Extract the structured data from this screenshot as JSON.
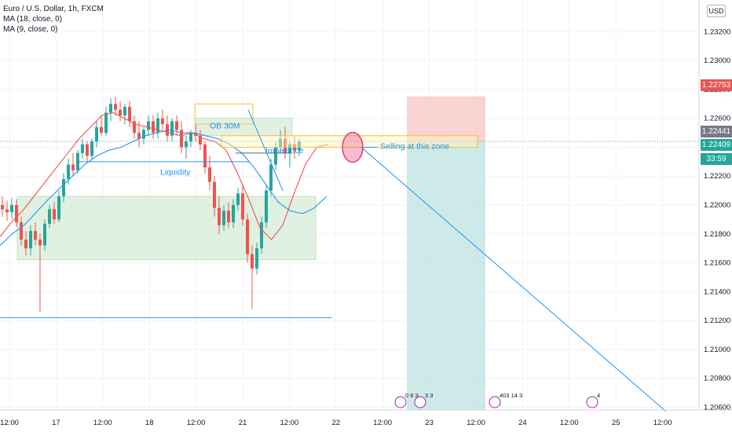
{
  "legend": {
    "symbol": "Euro / U.S. Dollar, 1h, FXCM",
    "ma18": "MA (18, close, 0)",
    "ma9": "MA (9, close, 0)"
  },
  "currency_button": "USD",
  "badges": {
    "stop_price": "1.22753",
    "last_price": "1.22441",
    "ask_price": "1.22409",
    "countdown": "33:59"
  },
  "colors": {
    "up": "#26a69a",
    "down": "#ef5350",
    "ma18": "#2196f3",
    "ma9": "#ef5350",
    "zone": "#c8e6c9",
    "ob": "#fbc02d",
    "stop": "#f8c4c4",
    "target": "#b2dfdb",
    "drawing_blue": "#2196f3"
  },
  "annotations": {
    "ob": "OB 30M",
    "imbalance": "Imbalance",
    "liquidity": "Liquidity",
    "selling": "Selling at this zone"
  },
  "event_flags": [
    "0 6 3",
    "3 3",
    "403 14 3",
    "4"
  ],
  "chart_data": {
    "type": "candlestick",
    "title": "Euro / U.S. Dollar, 1h, FXCM",
    "ylim": [
      1.2058,
      1.2342
    ],
    "y_ticks": [
      1.206,
      1.208,
      1.21,
      1.212,
      1.214,
      1.216,
      1.218,
      1.22,
      1.222,
      1.224,
      1.226,
      1.228,
      1.23,
      1.232
    ],
    "y_tick_labels": [
      "1.20600",
      "1.20800",
      "1.21000",
      "1.21200",
      "1.21400",
      "1.21600",
      "1.21800",
      "1.22000",
      "1.22200",
      "1.22400",
      "1.22600",
      "1.22800",
      "1.23000",
      "1.23200"
    ],
    "x_tick_labels": [
      "12:00",
      "17",
      "12:00",
      "18",
      "12:00",
      "21",
      "12:00",
      "22",
      "12:00",
      "23",
      "12:00",
      "24",
      "12:00",
      "25",
      "12:00"
    ],
    "ohlc": [
      [
        1.22,
        1.2206,
        1.2192,
        1.2197
      ],
      [
        1.2197,
        1.2203,
        1.2189,
        1.2195
      ],
      [
        1.2195,
        1.2205,
        1.219,
        1.22
      ],
      [
        1.22,
        1.2204,
        1.2185,
        1.2188
      ],
      [
        1.2188,
        1.2192,
        1.2172,
        1.2176
      ],
      [
        1.2176,
        1.2182,
        1.2165,
        1.217
      ],
      [
        1.217,
        1.2186,
        1.2165,
        1.2182
      ],
      [
        1.2182,
        1.2188,
        1.2172,
        1.2176
      ],
      [
        1.2176,
        1.218,
        1.2126,
        1.2172
      ],
      [
        1.2172,
        1.219,
        1.2168,
        1.2187
      ],
      [
        1.2187,
        1.22,
        1.2184,
        1.2197
      ],
      [
        1.2197,
        1.2202,
        1.2187,
        1.219
      ],
      [
        1.219,
        1.221,
        1.2188,
        1.2206
      ],
      [
        1.2206,
        1.2222,
        1.2202,
        1.2218
      ],
      [
        1.2218,
        1.2232,
        1.2214,
        1.2228
      ],
      [
        1.2228,
        1.2236,
        1.222,
        1.2224
      ],
      [
        1.2224,
        1.2238,
        1.2222,
        1.2236
      ],
      [
        1.2236,
        1.2246,
        1.2232,
        1.2242
      ],
      [
        1.2242,
        1.2244,
        1.223,
        1.2234
      ],
      [
        1.2234,
        1.2246,
        1.2232,
        1.2244
      ],
      [
        1.2244,
        1.2258,
        1.224,
        1.2254
      ],
      [
        1.2254,
        1.2262,
        1.2248,
        1.225
      ],
      [
        1.225,
        1.2268,
        1.2248,
        1.2264
      ],
      [
        1.2264,
        1.2274,
        1.2258,
        1.227
      ],
      [
        1.227,
        1.2275,
        1.2262,
        1.2266
      ],
      [
        1.2266,
        1.2272,
        1.2258,
        1.2262
      ],
      [
        1.2262,
        1.227,
        1.2256,
        1.2268
      ],
      [
        1.2268,
        1.2272,
        1.2254,
        1.2258
      ],
      [
        1.2258,
        1.2262,
        1.2246,
        1.225
      ],
      [
        1.225,
        1.2258,
        1.224,
        1.2246
      ],
      [
        1.2246,
        1.2254,
        1.2242,
        1.2252
      ],
      [
        1.2252,
        1.2262,
        1.2248,
        1.2258
      ],
      [
        1.2258,
        1.2262,
        1.2246,
        1.225
      ],
      [
        1.225,
        1.2264,
        1.2246,
        1.226
      ],
      [
        1.226,
        1.2266,
        1.2252,
        1.2256
      ],
      [
        1.2256,
        1.2262,
        1.2244,
        1.2248
      ],
      [
        1.2248,
        1.226,
        1.2244,
        1.2258
      ],
      [
        1.2258,
        1.2262,
        1.2248,
        1.2252
      ],
      [
        1.2252,
        1.2258,
        1.2236,
        1.224
      ],
      [
        1.224,
        1.2248,
        1.2232,
        1.2244
      ],
      [
        1.2244,
        1.2252,
        1.224,
        1.225
      ],
      [
        1.225,
        1.2256,
        1.2244,
        1.2248
      ],
      [
        1.2248,
        1.2252,
        1.2238,
        1.2242
      ],
      [
        1.2242,
        1.2244,
        1.2222,
        1.2226
      ],
      [
        1.2226,
        1.2234,
        1.221,
        1.2216
      ],
      [
        1.2216,
        1.222,
        1.2192,
        1.2198
      ],
      [
        1.2198,
        1.2206,
        1.218,
        1.2186
      ],
      [
        1.2186,
        1.22,
        1.2182,
        1.2196
      ],
      [
        1.2196,
        1.2202,
        1.2184,
        1.2188
      ],
      [
        1.2188,
        1.2204,
        1.2184,
        1.22
      ],
      [
        1.22,
        1.2212,
        1.2196,
        1.2208
      ],
      [
        1.2208,
        1.2214,
        1.2186,
        1.219
      ],
      [
        1.219,
        1.2194,
        1.216,
        1.2166
      ],
      [
        1.2166,
        1.2172,
        1.2128,
        1.2156
      ],
      [
        1.2156,
        1.2174,
        1.2152,
        1.217
      ],
      [
        1.217,
        1.2192,
        1.2166,
        1.2188
      ],
      [
        1.2188,
        1.2214,
        1.2184,
        1.221
      ],
      [
        1.221,
        1.2232,
        1.2206,
        1.2228
      ],
      [
        1.2228,
        1.2244,
        1.2224,
        1.224
      ],
      [
        1.224,
        1.2252,
        1.2236,
        1.2246
      ],
      [
        1.2246,
        1.2254,
        1.2232,
        1.2236
      ],
      [
        1.2236,
        1.2244,
        1.2226,
        1.2242
      ],
      [
        1.2242,
        1.2248,
        1.2232,
        1.2238
      ],
      [
        1.2238,
        1.2246,
        1.2234,
        1.2244
      ]
    ],
    "ma18": [
      1.2172,
      1.218,
      1.2186,
      1.2195,
      1.2204,
      1.2212,
      1.222,
      1.2228,
      1.2234,
      1.2238,
      1.224,
      1.2244,
      1.2248,
      1.225,
      1.2252,
      1.225,
      1.225,
      1.2248,
      1.2246,
      1.2242,
      1.2236,
      1.2226,
      1.2214,
      1.2202,
      1.2196,
      1.2194,
      1.2198,
      1.2206
    ],
    "ma9": [
      1.2178,
      1.2188,
      1.2196,
      1.2206,
      1.2216,
      1.2226,
      1.2236,
      1.2246,
      1.2254,
      1.2262,
      1.2264,
      1.226,
      1.2256,
      1.2254,
      1.2252,
      1.225,
      1.2248,
      1.225,
      1.2246,
      1.2244,
      1.2238,
      1.2222,
      1.2204,
      1.2184,
      1.2176,
      1.2186,
      1.2208,
      1.2228,
      1.224,
      1.2242
    ]
  }
}
